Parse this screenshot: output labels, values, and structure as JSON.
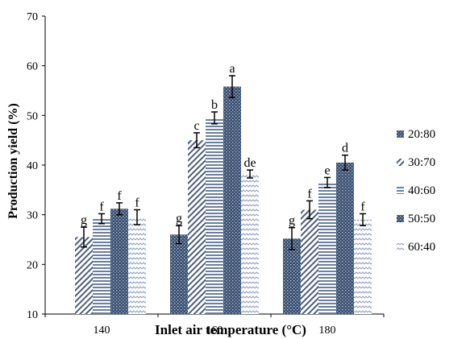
{
  "chart_data": {
    "type": "bar",
    "xlabel": "Inlet air temperature (°C)",
    "ylabel": "Production yield (%)",
    "ylim": [
      10,
      70
    ],
    "yticks": [
      10,
      20,
      30,
      40,
      50,
      60,
      70
    ],
    "grid": false,
    "legend_position": "right",
    "categories": [
      "140",
      "160",
      "180"
    ],
    "series": [
      {
        "name": "20:80",
        "pattern": "dark-dots",
        "values": [
          null,
          26,
          25.2
        ],
        "errors": [
          null,
          1.8,
          2.2
        ],
        "letters": [
          "",
          "g",
          "g"
        ]
      },
      {
        "name": "30:70",
        "pattern": "diagonal",
        "values": [
          25.5,
          45,
          31
        ],
        "errors": [
          2,
          1.5,
          1.8
        ],
        "letters": [
          "g",
          "c",
          "f"
        ]
      },
      {
        "name": "40:60",
        "pattern": "horizontal",
        "values": [
          29.2,
          49.5,
          36.5
        ],
        "errors": [
          1,
          1.2,
          1
        ],
        "letters": [
          "f",
          "b",
          "e"
        ]
      },
      {
        "name": "50:50",
        "pattern": "dark-dots",
        "values": [
          31.2,
          55.8,
          40.5
        ],
        "errors": [
          1.2,
          2.2,
          1.5
        ],
        "letters": [
          "f",
          "a",
          "d"
        ]
      },
      {
        "name": "60:40",
        "pattern": "zigzag",
        "values": [
          29.5,
          38.2,
          29
        ],
        "errors": [
          1.5,
          0.8,
          1.2
        ],
        "letters": [
          "f",
          "de",
          "f"
        ]
      }
    ]
  }
}
